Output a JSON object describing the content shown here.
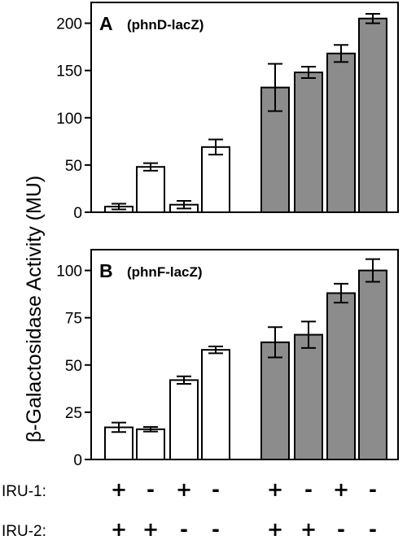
{
  "chart_data": {
    "type": "bar",
    "ylabel": "β-Galactosidase Activity (MU)",
    "bar_colors": {
      "open": "#ffffff",
      "filled": "#8c8c8c"
    },
    "panels": [
      {
        "letter": "A",
        "gene": "(phnD-lacZ)",
        "yticks": [
          "0",
          "50",
          "100",
          "150",
          "200"
        ],
        "ylim": [
          0,
          222
        ],
        "values": [
          6,
          48,
          8,
          69,
          132,
          148,
          168,
          205
        ],
        "errors": [
          3,
          4,
          4,
          8,
          25,
          6,
          9,
          5
        ],
        "fill": [
          "open",
          "open",
          "open",
          "open",
          "filled",
          "filled",
          "filled",
          "filled"
        ]
      },
      {
        "letter": "B",
        "gene": "(phnF-lacZ)",
        "yticks": [
          "0",
          "25",
          "50",
          "75",
          "100"
        ],
        "ylim": [
          0,
          111
        ],
        "values": [
          17,
          16,
          42,
          58,
          62,
          66,
          88,
          100
        ],
        "errors": [
          2.5,
          1.2,
          2,
          1.8,
          8,
          7,
          5,
          6
        ],
        "fill": [
          "open",
          "open",
          "open",
          "open",
          "filled",
          "filled",
          "filled",
          "filled"
        ]
      }
    ],
    "conditions": [
      {
        "label": "IRU-1:",
        "signs": [
          "+",
          "-",
          "+",
          "-",
          "+",
          "-",
          "+",
          "-"
        ]
      },
      {
        "label": "IRU-2:",
        "signs": [
          "+",
          "+",
          "-",
          "-",
          "+",
          "+",
          "-",
          "-"
        ]
      }
    ]
  }
}
